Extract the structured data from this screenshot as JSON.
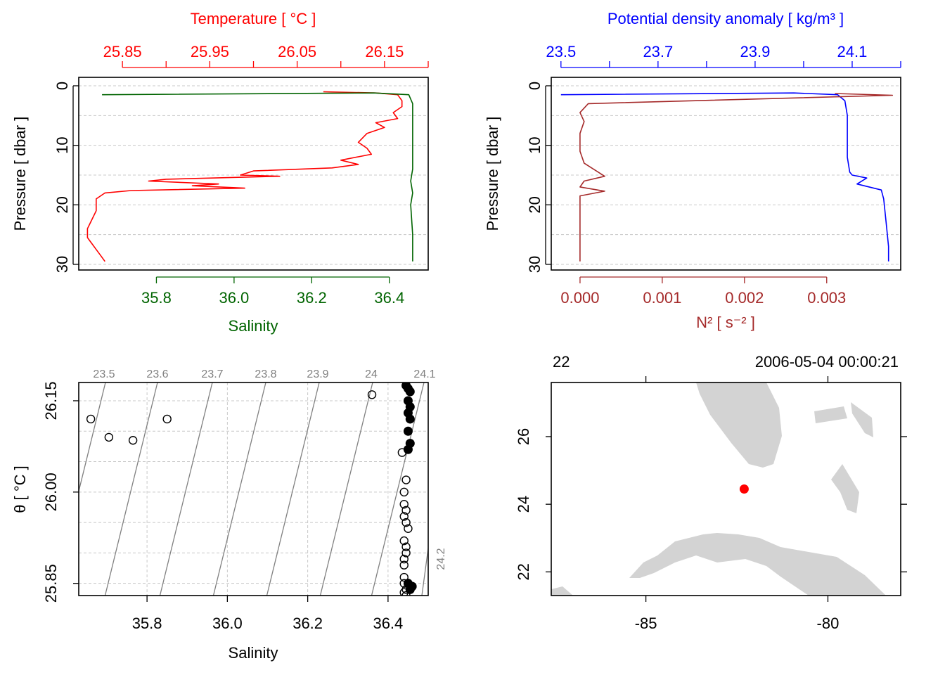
{
  "chart_data": [
    {
      "type": "line",
      "panel": "temperature-salinity-profile",
      "top_axis_label": "Temperature [ °C ]",
      "top_axis_color": "#ff0000",
      "top_ticks": [
        "25.85",
        "25.95",
        "26.05",
        "26.15"
      ],
      "top_range": [
        25.8,
        26.2
      ],
      "bottom_axis_label": "Salinity",
      "bottom_axis_color": "#006400",
      "bottom_ticks": [
        "35.8",
        "36.0",
        "36.2",
        "36.4"
      ],
      "bottom_range": [
        35.6,
        36.5
      ],
      "ylabel": "Pressure [ dbar ]",
      "y_ticks": [
        "0",
        "10",
        "20",
        "30"
      ],
      "ylim": [
        30,
        0
      ],
      "series": [
        {
          "name": "Temperature",
          "color": "#ff0000",
          "points": [
            [
              26.08,
              1.0
            ],
            [
              26.14,
              1.2
            ],
            [
              26.165,
              1.5
            ],
            [
              26.17,
              2.5
            ],
            [
              26.17,
              3.5
            ],
            [
              26.16,
              4.5
            ],
            [
              26.165,
              5.5
            ],
            [
              26.14,
              6.2
            ],
            [
              26.15,
              7.0
            ],
            [
              26.13,
              8.0
            ],
            [
              26.12,
              9.5
            ],
            [
              26.13,
              10.5
            ],
            [
              26.135,
              11.5
            ],
            [
              26.1,
              12.5
            ],
            [
              26.12,
              13.2
            ],
            [
              26.09,
              13.8
            ],
            [
              26.0,
              14.3
            ],
            [
              25.985,
              15.0
            ],
            [
              26.03,
              15.2
            ],
            [
              25.9,
              15.7
            ],
            [
              25.88,
              16.0
            ],
            [
              25.96,
              16.5
            ],
            [
              25.93,
              16.8
            ],
            [
              25.99,
              17.2
            ],
            [
              25.86,
              17.6
            ],
            [
              25.83,
              18.0
            ],
            [
              25.82,
              19.0
            ],
            [
              25.82,
              21.0
            ],
            [
              25.815,
              22.5
            ],
            [
              25.81,
              24.0
            ],
            [
              25.81,
              25.5
            ],
            [
              25.815,
              26.5
            ],
            [
              25.82,
              27.5
            ],
            [
              25.825,
              28.5
            ],
            [
              25.83,
              29.5
            ]
          ]
        },
        {
          "name": "Salinity",
          "color": "#006400",
          "points": [
            [
              35.66,
              1.5
            ],
            [
              36.36,
              1.2
            ],
            [
              36.45,
              1.5
            ],
            [
              36.46,
              3.0
            ],
            [
              36.46,
              6.0
            ],
            [
              36.46,
              10.0
            ],
            [
              36.46,
              14.0
            ],
            [
              36.455,
              16.0
            ],
            [
              36.46,
              18.0
            ],
            [
              36.455,
              20.0
            ],
            [
              36.46,
              25.0
            ],
            [
              36.46,
              29.5
            ]
          ]
        }
      ]
    },
    {
      "type": "line",
      "panel": "density-n2-profile",
      "top_axis_label": "Potential density anomaly [ kg/m³ ]",
      "top_axis_color": "#0000ff",
      "top_ticks": [
        "23.5",
        "23.7",
        "23.9",
        "24.1"
      ],
      "top_range": [
        23.48,
        24.2
      ],
      "bottom_axis_label": "N² [ s⁻² ]",
      "bottom_axis_color": "#a52a2a",
      "bottom_ticks": [
        "0.000",
        "0.001",
        "0.002",
        "0.003"
      ],
      "bottom_range": [
        -0.00035,
        0.0039
      ],
      "ylabel": "Pressure [ dbar ]",
      "y_ticks": [
        "0",
        "10",
        "20",
        "30"
      ],
      "ylim": [
        30,
        0
      ],
      "series": [
        {
          "name": "Potential density anomaly",
          "color": "#0000ff",
          "points": [
            [
              23.5,
              1.5
            ],
            [
              23.98,
              1.2
            ],
            [
              24.07,
              1.5
            ],
            [
              24.085,
              2.5
            ],
            [
              24.09,
              5.0
            ],
            [
              24.09,
              9.0
            ],
            [
              24.09,
              12.0
            ],
            [
              24.095,
              14.5
            ],
            [
              24.1,
              15.0
            ],
            [
              24.13,
              15.5
            ],
            [
              24.11,
              16.5
            ],
            [
              24.16,
              17.5
            ],
            [
              24.165,
              19.0
            ],
            [
              24.17,
              23.0
            ],
            [
              24.175,
              27.0
            ],
            [
              24.175,
              29.5
            ]
          ]
        },
        {
          "name": "N2",
          "color": "#a52a2a",
          "points": [
            [
              0.0031,
              1.3
            ],
            [
              0.0038,
              1.6
            ],
            [
              0.0001,
              3.0
            ],
            [
              0.0,
              4.5
            ],
            [
              5e-05,
              6.0
            ],
            [
              0.0,
              8.0
            ],
            [
              0.0,
              11.0
            ],
            [
              5e-05,
              13.0
            ],
            [
              0.0003,
              15.2
            ],
            [
              5e-05,
              16.0
            ],
            [
              0.0,
              17.0
            ],
            [
              0.0003,
              17.7
            ],
            [
              0.0,
              18.5
            ],
            [
              0.0,
              22.0
            ],
            [
              0.0,
              26.0
            ],
            [
              0.0,
              29.5
            ]
          ]
        }
      ]
    },
    {
      "type": "scatter",
      "panel": "ts-diagram",
      "xlabel": "Salinity",
      "ylabel": "θ [ °C ]",
      "x_ticks": [
        "35.8",
        "36.0",
        "36.2",
        "36.4"
      ],
      "y_ticks": [
        "25.85",
        "26.00",
        "26.15"
      ],
      "xlim": [
        35.63,
        36.5
      ],
      "ylim": [
        25.83,
        26.18
      ],
      "density_contours": [
        "23.5",
        "23.6",
        "23.7",
        "23.8",
        "23.9",
        "24",
        "24.1",
        "24.2"
      ],
      "points": [
        [
          35.66,
          26.12
        ],
        [
          35.705,
          26.09
        ],
        [
          35.765,
          26.085
        ],
        [
          35.85,
          26.12
        ],
        [
          36.36,
          26.16
        ],
        [
          36.435,
          26.065
        ],
        [
          36.44,
          25.98
        ],
        [
          36.44,
          25.96
        ],
        [
          36.445,
          25.95
        ],
        [
          36.44,
          25.92
        ],
        [
          36.445,
          25.9
        ],
        [
          36.44,
          25.88
        ],
        [
          36.44,
          25.86
        ],
        [
          36.44,
          25.85
        ],
        [
          36.445,
          26.02
        ],
        [
          36.44,
          26.0
        ],
        [
          36.445,
          25.97
        ],
        [
          36.45,
          25.94
        ],
        [
          36.445,
          25.91
        ],
        [
          36.44,
          25.89
        ],
        [
          36.445,
          25.84
        ],
        [
          36.44,
          25.835
        ],
        [
          36.445,
          25.83
        ]
      ],
      "filled_points": [
        [
          36.445,
          26.175
        ],
        [
          36.45,
          26.17
        ],
        [
          36.455,
          26.165
        ],
        [
          36.45,
          26.15
        ],
        [
          36.455,
          26.14
        ],
        [
          36.45,
          26.13
        ],
        [
          36.455,
          26.12
        ],
        [
          36.45,
          26.1
        ],
        [
          36.455,
          26.08
        ],
        [
          36.45,
          26.07
        ],
        [
          36.45,
          25.85
        ],
        [
          36.455,
          25.84
        ],
        [
          36.46,
          25.845
        ]
      ]
    },
    {
      "type": "map",
      "panel": "station-map",
      "station_label": "22",
      "datetime": "2006-05-04 00:00:21",
      "x_ticks": [
        "-85",
        "-80"
      ],
      "y_ticks": [
        "22",
        "24",
        "26"
      ],
      "xlim": [
        -87.6,
        -78.0
      ],
      "ylim": [
        21.3,
        27.6
      ],
      "station": {
        "lon": -82.3,
        "lat": 24.45,
        "color": "#ff0000"
      },
      "land_color": "#d3d3d3"
    }
  ]
}
